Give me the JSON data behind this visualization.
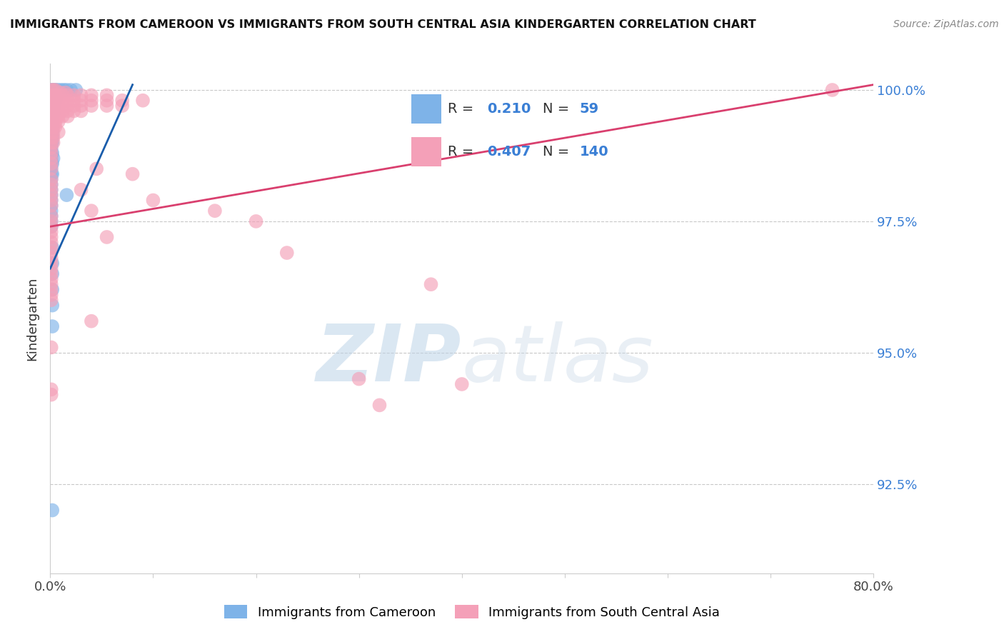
{
  "title": "IMMIGRANTS FROM CAMEROON VS IMMIGRANTS FROM SOUTH CENTRAL ASIA KINDERGARTEN CORRELATION CHART",
  "source": "Source: ZipAtlas.com",
  "ylabel": "Kindergarten",
  "y_tick_labels": [
    "100.0%",
    "97.5%",
    "95.0%",
    "92.5%"
  ],
  "y_tick_values": [
    1.0,
    0.975,
    0.95,
    0.925
  ],
  "xlim": [
    0.0,
    0.8
  ],
  "ylim": [
    0.908,
    1.005
  ],
  "legend_R_blue": "0.210",
  "legend_N_blue": "59",
  "legend_R_pink": "0.407",
  "legend_N_pink": "140",
  "blue_color": "#7EB3E8",
  "pink_color": "#F4A0B8",
  "blue_line_color": "#1A5DAB",
  "pink_line_color": "#D93F6E",
  "blue_scatter": [
    [
      0.001,
      1.0
    ],
    [
      0.003,
      1.0
    ],
    [
      0.005,
      1.0
    ],
    [
      0.007,
      1.0
    ],
    [
      0.01,
      1.0
    ],
    [
      0.013,
      1.0
    ],
    [
      0.016,
      1.0
    ],
    [
      0.02,
      1.0
    ],
    [
      0.025,
      1.0
    ],
    [
      0.002,
      0.999
    ],
    [
      0.004,
      0.999
    ],
    [
      0.006,
      0.999
    ],
    [
      0.001,
      0.998
    ],
    [
      0.003,
      0.998
    ],
    [
      0.005,
      0.998
    ],
    [
      0.001,
      0.997
    ],
    [
      0.002,
      0.997
    ],
    [
      0.004,
      0.997
    ],
    [
      0.001,
      0.996
    ],
    [
      0.002,
      0.996
    ],
    [
      0.001,
      0.9955
    ],
    [
      0.003,
      0.9955
    ],
    [
      0.001,
      0.994
    ],
    [
      0.002,
      0.994
    ],
    [
      0.001,
      0.993
    ],
    [
      0.002,
      0.993
    ],
    [
      0.001,
      0.992
    ],
    [
      0.002,
      0.992
    ],
    [
      0.001,
      0.991
    ],
    [
      0.002,
      0.991
    ],
    [
      0.001,
      0.99
    ],
    [
      0.002,
      0.99
    ],
    [
      0.001,
      0.989
    ],
    [
      0.001,
      0.988
    ],
    [
      0.002,
      0.988
    ],
    [
      0.001,
      0.987
    ],
    [
      0.003,
      0.987
    ],
    [
      0.001,
      0.986
    ],
    [
      0.002,
      0.986
    ],
    [
      0.001,
      0.985
    ],
    [
      0.001,
      0.984
    ],
    [
      0.002,
      0.984
    ],
    [
      0.001,
      0.983
    ],
    [
      0.001,
      0.982
    ],
    [
      0.001,
      0.981
    ],
    [
      0.001,
      0.98
    ],
    [
      0.016,
      0.98
    ],
    [
      0.001,
      0.979
    ],
    [
      0.001,
      0.978
    ],
    [
      0.001,
      0.977
    ],
    [
      0.001,
      0.976
    ],
    [
      0.001,
      0.975
    ],
    [
      0.001,
      0.974
    ],
    [
      0.002,
      0.97
    ],
    [
      0.002,
      0.967
    ],
    [
      0.002,
      0.965
    ],
    [
      0.002,
      0.962
    ],
    [
      0.002,
      0.959
    ],
    [
      0.002,
      0.955
    ],
    [
      0.002,
      0.92
    ]
  ],
  "pink_scatter": [
    [
      0.001,
      1.0
    ],
    [
      0.003,
      1.0
    ],
    [
      0.005,
      1.0
    ],
    [
      0.01,
      0.9995
    ],
    [
      0.015,
      0.9995
    ],
    [
      0.001,
      0.999
    ],
    [
      0.003,
      0.999
    ],
    [
      0.005,
      0.999
    ],
    [
      0.008,
      0.999
    ],
    [
      0.012,
      0.999
    ],
    [
      0.017,
      0.999
    ],
    [
      0.023,
      0.999
    ],
    [
      0.03,
      0.999
    ],
    [
      0.04,
      0.999
    ],
    [
      0.055,
      0.999
    ],
    [
      0.001,
      0.998
    ],
    [
      0.003,
      0.998
    ],
    [
      0.005,
      0.998
    ],
    [
      0.008,
      0.998
    ],
    [
      0.012,
      0.998
    ],
    [
      0.017,
      0.998
    ],
    [
      0.023,
      0.998
    ],
    [
      0.03,
      0.998
    ],
    [
      0.04,
      0.998
    ],
    [
      0.055,
      0.998
    ],
    [
      0.07,
      0.998
    ],
    [
      0.09,
      0.998
    ],
    [
      0.001,
      0.997
    ],
    [
      0.003,
      0.997
    ],
    [
      0.005,
      0.997
    ],
    [
      0.008,
      0.997
    ],
    [
      0.012,
      0.997
    ],
    [
      0.017,
      0.997
    ],
    [
      0.023,
      0.997
    ],
    [
      0.03,
      0.997
    ],
    [
      0.04,
      0.997
    ],
    [
      0.055,
      0.997
    ],
    [
      0.07,
      0.997
    ],
    [
      0.001,
      0.996
    ],
    [
      0.003,
      0.996
    ],
    [
      0.005,
      0.996
    ],
    [
      0.008,
      0.996
    ],
    [
      0.012,
      0.996
    ],
    [
      0.017,
      0.996
    ],
    [
      0.023,
      0.996
    ],
    [
      0.03,
      0.996
    ],
    [
      0.001,
      0.995
    ],
    [
      0.003,
      0.995
    ],
    [
      0.005,
      0.995
    ],
    [
      0.008,
      0.995
    ],
    [
      0.012,
      0.995
    ],
    [
      0.017,
      0.995
    ],
    [
      0.001,
      0.994
    ],
    [
      0.003,
      0.994
    ],
    [
      0.005,
      0.994
    ],
    [
      0.008,
      0.994
    ],
    [
      0.001,
      0.993
    ],
    [
      0.003,
      0.993
    ],
    [
      0.005,
      0.993
    ],
    [
      0.001,
      0.992
    ],
    [
      0.003,
      0.992
    ],
    [
      0.008,
      0.992
    ],
    [
      0.001,
      0.991
    ],
    [
      0.003,
      0.991
    ],
    [
      0.001,
      0.99
    ],
    [
      0.003,
      0.99
    ],
    [
      0.001,
      0.989
    ],
    [
      0.001,
      0.988
    ],
    [
      0.001,
      0.987
    ],
    [
      0.001,
      0.986
    ],
    [
      0.001,
      0.985
    ],
    [
      0.045,
      0.985
    ],
    [
      0.08,
      0.984
    ],
    [
      0.001,
      0.983
    ],
    [
      0.001,
      0.982
    ],
    [
      0.001,
      0.981
    ],
    [
      0.03,
      0.981
    ],
    [
      0.001,
      0.98
    ],
    [
      0.001,
      0.979
    ],
    [
      0.1,
      0.979
    ],
    [
      0.001,
      0.978
    ],
    [
      0.04,
      0.977
    ],
    [
      0.16,
      0.977
    ],
    [
      0.001,
      0.976
    ],
    [
      0.001,
      0.975
    ],
    [
      0.2,
      0.975
    ],
    [
      0.001,
      0.974
    ],
    [
      0.001,
      0.973
    ],
    [
      0.001,
      0.972
    ],
    [
      0.055,
      0.972
    ],
    [
      0.001,
      0.971
    ],
    [
      0.001,
      0.97
    ],
    [
      0.001,
      0.969
    ],
    [
      0.23,
      0.969
    ],
    [
      0.001,
      0.968
    ],
    [
      0.001,
      0.967
    ],
    [
      0.001,
      0.966
    ],
    [
      0.001,
      0.965
    ],
    [
      0.001,
      0.964
    ],
    [
      0.001,
      0.963
    ],
    [
      0.37,
      0.963
    ],
    [
      0.001,
      0.962
    ],
    [
      0.001,
      0.961
    ],
    [
      0.001,
      0.96
    ],
    [
      0.04,
      0.956
    ],
    [
      0.001,
      0.951
    ],
    [
      0.3,
      0.945
    ],
    [
      0.4,
      0.944
    ],
    [
      0.001,
      0.943
    ],
    [
      0.001,
      0.942
    ],
    [
      0.32,
      0.94
    ],
    [
      0.76,
      1.0
    ]
  ],
  "blue_line_x": [
    0.0,
    0.08
  ],
  "blue_line_y": [
    0.966,
    1.001
  ],
  "pink_line_x": [
    0.0,
    0.8
  ],
  "pink_line_y": [
    0.974,
    1.001
  ]
}
